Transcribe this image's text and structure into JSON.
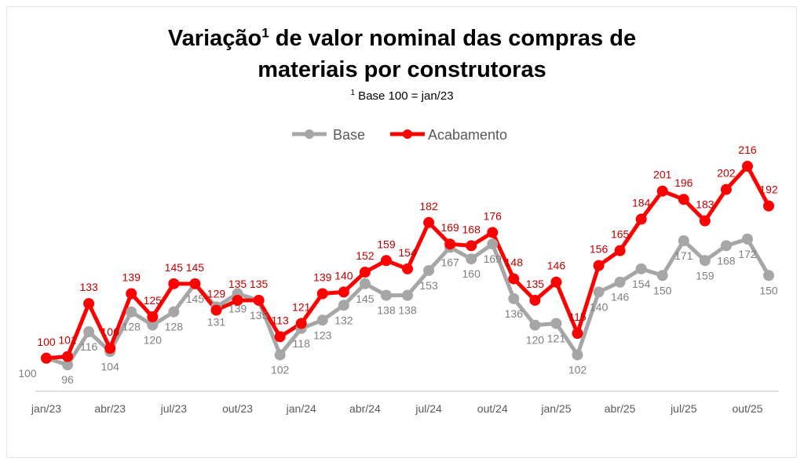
{
  "chart_data": {
    "type": "line",
    "title_line1": "Variação",
    "title_sup": "1",
    "title_rest": " de valor nominal das compras de",
    "title_line2": "materiais por construtoras",
    "subtitle_sup": "1",
    "subtitle": " Base 100 = jan/23",
    "legend_position": "top",
    "grid": false,
    "ylim": [
      80,
      230
    ],
    "x": [
      "jan/23",
      "fev/23",
      "mar/23",
      "abr/23",
      "mai/23",
      "jun/23",
      "jul/23",
      "ago/23",
      "set/23",
      "out/23",
      "nov/23",
      "dez/23",
      "jan/24",
      "fev/24",
      "mar/24",
      "abr/24",
      "mai/24",
      "jun/24",
      "jul/24",
      "ago/24",
      "set/24",
      "out/24",
      "nov/24",
      "dez/24",
      "jan/25",
      "fev/25",
      "mar/25",
      "abr/25",
      "mai/25",
      "jun/25",
      "jul/25",
      "ago/25",
      "set/25",
      "out/25",
      "nov/25"
    ],
    "tick_labels": [
      "jan/23",
      "abr/23",
      "jul/23",
      "out/23",
      "jan/24",
      "abr/24",
      "jul/24",
      "out/24",
      "jan/25",
      "abr/25",
      "jul/25",
      "out/25"
    ],
    "series": [
      {
        "name": "Base",
        "color": "#a6a6a6",
        "label_color": "#7f7f7f",
        "values": [
          100,
          96,
          116,
          104,
          128,
          120,
          128,
          145,
          131,
          139,
          135,
          102,
          118,
          123,
          132,
          145,
          138,
          138,
          153,
          167,
          160,
          169,
          136,
          120,
          121,
          102,
          140,
          146,
          154,
          150,
          171,
          159,
          168,
          172,
          150
        ]
      },
      {
        "name": "Acabamento",
        "color": "#ff0000",
        "label_color": "#c00000",
        "values": [
          100,
          101,
          133,
          106,
          139,
          125,
          145,
          145,
          129,
          135,
          135,
          113,
          121,
          139,
          140,
          152,
          159,
          154,
          182,
          169,
          168,
          176,
          148,
          135,
          146,
          115,
          156,
          165,
          184,
          201,
          196,
          183,
          202,
          216,
          192
        ]
      }
    ]
  }
}
